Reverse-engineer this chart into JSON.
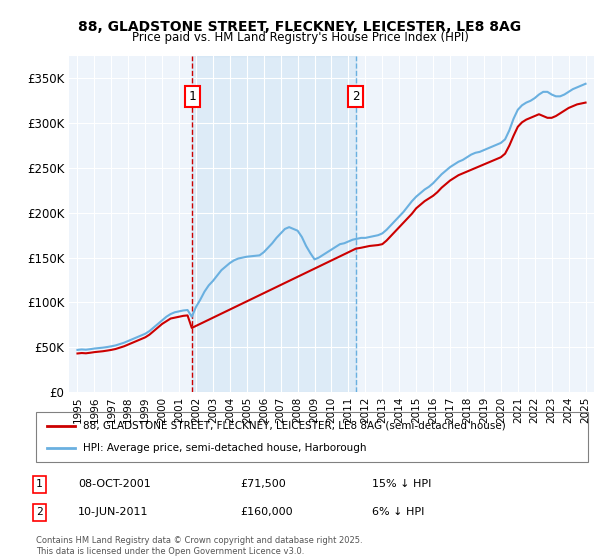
{
  "title1": "88, GLADSTONE STREET, FLECKNEY, LEICESTER, LE8 8AG",
  "title2": "Price paid vs. HM Land Registry's House Price Index (HPI)",
  "legend_line1": "88, GLADSTONE STREET, FLECKNEY, LEICESTER, LE8 8AG (semi-detached house)",
  "legend_line2": "HPI: Average price, semi-detached house, Harborough",
  "footer": "Contains HM Land Registry data © Crown copyright and database right 2025.\nThis data is licensed under the Open Government Licence v3.0.",
  "sale1_label": "1",
  "sale1_date": "08-OCT-2001",
  "sale1_price": 71500,
  "sale1_note": "15% ↓ HPI",
  "sale2_label": "2",
  "sale2_date": "10-JUN-2011",
  "sale2_price": 160000,
  "sale2_note": "6% ↓ HPI",
  "sale1_x": 2001.77,
  "sale2_x": 2011.44,
  "color_property": "#cc0000",
  "color_hpi": "#6ab0e0",
  "color_vline": "#cc0000",
  "color_vline2": "#6ab0e0",
  "background_plot": "#eef4fb",
  "background_fig": "#ffffff",
  "ylim": [
    0,
    375000
  ],
  "xlim": [
    1994.5,
    2025.5
  ],
  "yticks": [
    0,
    50000,
    100000,
    150000,
    200000,
    250000,
    300000,
    350000
  ],
  "ytick_labels": [
    "£0",
    "£50K",
    "£100K",
    "£150K",
    "£200K",
    "£250K",
    "£300K",
    "£350K"
  ],
  "xticks": [
    1995,
    1996,
    1997,
    1998,
    1999,
    2000,
    2001,
    2002,
    2003,
    2004,
    2005,
    2006,
    2007,
    2008,
    2009,
    2010,
    2011,
    2012,
    2013,
    2014,
    2015,
    2016,
    2017,
    2018,
    2019,
    2020,
    2021,
    2022,
    2023,
    2024,
    2025
  ],
  "hpi_x": [
    1995.0,
    1995.25,
    1995.5,
    1995.75,
    1996.0,
    1996.25,
    1996.5,
    1996.75,
    1997.0,
    1997.25,
    1997.5,
    1997.75,
    1998.0,
    1998.25,
    1998.5,
    1998.75,
    1999.0,
    1999.25,
    1999.5,
    1999.75,
    2000.0,
    2000.25,
    2000.5,
    2000.75,
    2001.0,
    2001.25,
    2001.5,
    2001.75,
    2002.0,
    2002.25,
    2002.5,
    2002.75,
    2003.0,
    2003.25,
    2003.5,
    2003.75,
    2004.0,
    2004.25,
    2004.5,
    2004.75,
    2005.0,
    2005.25,
    2005.5,
    2005.75,
    2006.0,
    2006.25,
    2006.5,
    2006.75,
    2007.0,
    2007.25,
    2007.5,
    2007.75,
    2008.0,
    2008.25,
    2008.5,
    2008.75,
    2009.0,
    2009.25,
    2009.5,
    2009.75,
    2010.0,
    2010.25,
    2010.5,
    2010.75,
    2011.0,
    2011.25,
    2011.5,
    2011.75,
    2012.0,
    2012.25,
    2012.5,
    2012.75,
    2013.0,
    2013.25,
    2013.5,
    2013.75,
    2014.0,
    2014.25,
    2014.5,
    2014.75,
    2015.0,
    2015.25,
    2015.5,
    2015.75,
    2016.0,
    2016.25,
    2016.5,
    2016.75,
    2017.0,
    2017.25,
    2017.5,
    2017.75,
    2018.0,
    2018.25,
    2018.5,
    2018.75,
    2019.0,
    2019.25,
    2019.5,
    2019.75,
    2020.0,
    2020.25,
    2020.5,
    2020.75,
    2021.0,
    2021.25,
    2021.5,
    2021.75,
    2022.0,
    2022.25,
    2022.5,
    2022.75,
    2023.0,
    2023.25,
    2023.5,
    2023.75,
    2024.0,
    2024.25,
    2024.5,
    2024.75,
    2025.0
  ],
  "hpi_y": [
    47000,
    47500,
    47200,
    47800,
    48500,
    49000,
    49500,
    50200,
    51000,
    52000,
    53500,
    55000,
    57000,
    59000,
    61000,
    63000,
    65000,
    68000,
    72000,
    76000,
    80000,
    84000,
    87000,
    89000,
    90000,
    91000,
    91500,
    84000,
    95000,
    103000,
    112000,
    119000,
    124000,
    130000,
    136000,
    140000,
    144000,
    147000,
    149000,
    150000,
    151000,
    151500,
    152000,
    152500,
    156000,
    161000,
    166000,
    172000,
    177000,
    182000,
    184000,
    182000,
    180000,
    173000,
    163000,
    155000,
    148000,
    150000,
    153000,
    156000,
    159000,
    162000,
    165000,
    166000,
    168000,
    170000,
    171000,
    172000,
    172000,
    173000,
    174000,
    175000,
    177000,
    181000,
    186000,
    191000,
    196000,
    201000,
    207000,
    213000,
    218000,
    222000,
    226000,
    229000,
    233000,
    238000,
    243000,
    247000,
    251000,
    254000,
    257000,
    259000,
    262000,
    265000,
    267000,
    268000,
    270000,
    272000,
    274000,
    276000,
    278000,
    282000,
    292000,
    305000,
    315000,
    320000,
    323000,
    325000,
    328000,
    332000,
    335000,
    335000,
    332000,
    330000,
    330000,
    332000,
    335000,
    338000,
    340000,
    342000,
    344000
  ],
  "prop_x": [
    1995.0,
    1995.25,
    1995.5,
    1995.75,
    1996.0,
    1996.25,
    1996.5,
    1996.75,
    1997.0,
    1997.25,
    1997.5,
    1997.75,
    1998.0,
    1998.25,
    1998.5,
    1998.75,
    1999.0,
    1999.25,
    1999.5,
    1999.75,
    2000.0,
    2000.25,
    2000.5,
    2000.75,
    2001.0,
    2001.25,
    2001.5,
    2001.75,
    2011.44,
    2011.75,
    2012.0,
    2012.25,
    2012.5,
    2012.75,
    2013.0,
    2013.25,
    2013.5,
    2013.75,
    2014.0,
    2014.25,
    2014.5,
    2014.75,
    2015.0,
    2015.25,
    2015.5,
    2015.75,
    2016.0,
    2016.25,
    2016.5,
    2016.75,
    2017.0,
    2017.25,
    2017.5,
    2017.75,
    2018.0,
    2018.25,
    2018.5,
    2018.75,
    2019.0,
    2019.25,
    2019.5,
    2019.75,
    2020.0,
    2020.25,
    2020.5,
    2020.75,
    2021.0,
    2021.25,
    2021.5,
    2021.75,
    2022.0,
    2022.25,
    2022.5,
    2022.75,
    2023.0,
    2023.25,
    2023.5,
    2023.75,
    2024.0,
    2024.25,
    2024.5,
    2024.75,
    2025.0
  ],
  "prop_y": [
    43000,
    43500,
    43200,
    43800,
    44500,
    45000,
    45500,
    46200,
    47000,
    48000,
    49500,
    51000,
    53000,
    55000,
    57000,
    59000,
    61000,
    64000,
    68000,
    72000,
    76000,
    79000,
    82000,
    83000,
    84000,
    85000,
    85500,
    71500,
    160000,
    161000,
    162000,
    163000,
    163500,
    164000,
    165000,
    169000,
    174000,
    179000,
    184000,
    189000,
    194000,
    199000,
    205000,
    209000,
    213000,
    216000,
    219000,
    223000,
    228000,
    232000,
    236000,
    239000,
    242000,
    244000,
    246000,
    248000,
    250000,
    252000,
    254000,
    256000,
    258000,
    260000,
    262000,
    266000,
    275000,
    286000,
    296000,
    301000,
    304000,
    306000,
    308000,
    310000,
    308000,
    306000,
    306000,
    308000,
    311000,
    314000,
    317000,
    319000,
    321000,
    322000,
    323000
  ]
}
